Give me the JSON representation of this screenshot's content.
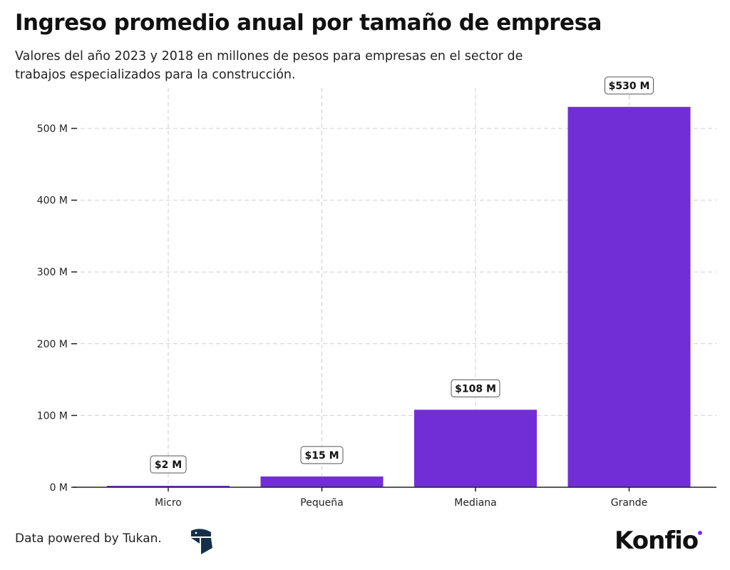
{
  "chart_data": {
    "type": "bar",
    "title": "Ingreso promedio anual por tamaño de empresa",
    "subtitle": "Valores del año 2023 y 2018 en millones de pesos para empresas en el sector de trabajos especializados para la construcción.",
    "categories": [
      "Micro",
      "Pequeña",
      "Mediana",
      "Grande"
    ],
    "values": [
      2,
      15,
      108,
      530
    ],
    "data_labels": [
      "$2 M",
      "$15 M",
      "$108 M",
      "$530 M"
    ],
    "unit": "millones de pesos",
    "xlabel": "",
    "ylabel": "",
    "ylim": [
      0,
      555
    ],
    "yticks": [
      0,
      100,
      200,
      300,
      400,
      500
    ],
    "ytick_labels": [
      "0 M",
      "100 M",
      "200 M",
      "300 M",
      "400 M",
      "500 M"
    ],
    "grid": true,
    "grid_style": "dashed",
    "bar_color": "#722ed6"
  },
  "footer": {
    "credit": "Data powered by Tukan.",
    "tukan_logo_icon": "tukan-logo-icon",
    "brand": "Konfio",
    "brand_color": "#7b2ff0"
  }
}
